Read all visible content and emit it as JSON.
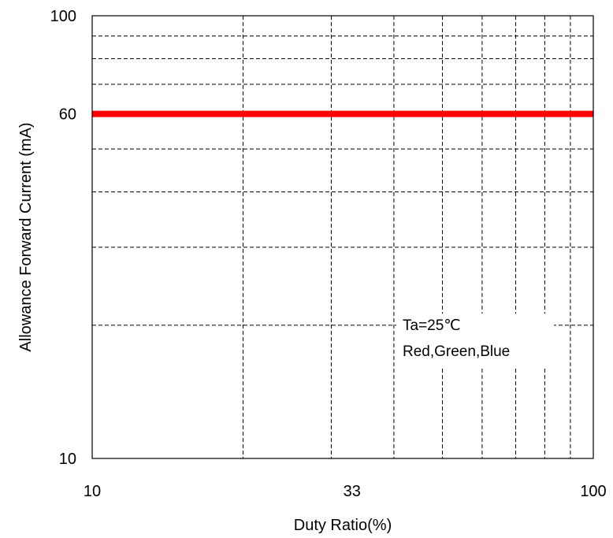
{
  "chart_data": {
    "type": "line",
    "title": "",
    "xlabel": "Duty Ratio(%)",
    "ylabel": "Allowance Forward Current (mA)",
    "x_scale": "log",
    "y_scale": "log",
    "xlim": [
      10,
      100
    ],
    "ylim": [
      10,
      100
    ],
    "x_tick_labels": [
      {
        "value": 10,
        "label": "10"
      },
      {
        "value": 33,
        "label": "33"
      },
      {
        "value": 100,
        "label": "100"
      }
    ],
    "y_tick_labels": [
      {
        "value": 10,
        "label": "10"
      },
      {
        "value": 60,
        "label": "60"
      },
      {
        "value": 100,
        "label": "100"
      }
    ],
    "grid": true,
    "x_grid": [
      20,
      30,
      40,
      50,
      60,
      70,
      80,
      90
    ],
    "y_grid": [
      20,
      30,
      40,
      50,
      70,
      80,
      90
    ],
    "series": [
      {
        "color": "#ff0000",
        "x": [
          10,
          100
        ],
        "y": [
          60,
          60
        ]
      }
    ],
    "annotations": [
      {
        "text": "Ta=25℃"
      },
      {
        "text": "Red,Green,Blue"
      }
    ]
  }
}
